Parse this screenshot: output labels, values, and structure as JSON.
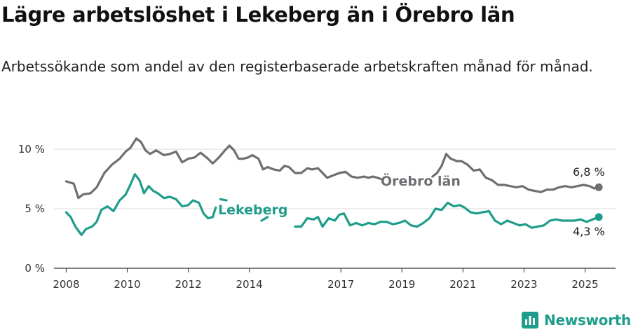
{
  "title": "Lägre arbetslöshet i Lekeberg än i Örebro län",
  "subtitle": "Arbetssökande som andel av den registerbaserade arbetskraften månad för månad.",
  "brand": {
    "name": "Newsworthy",
    "icon": "newsworthy-logo-icon",
    "color": "#1f9d8b"
  },
  "chart_data": {
    "type": "line",
    "ylim": [
      0,
      10.5
    ],
    "xlim": [
      2007.6,
      2026.0
    ],
    "y_ticks": [
      {
        "value": 0,
        "label": "0 %"
      },
      {
        "value": 5,
        "label": "5 %"
      },
      {
        "value": 10,
        "label": "10 %"
      }
    ],
    "x_ticks": [
      {
        "value": 2008,
        "label": "2008"
      },
      {
        "value": 2010,
        "label": "2010"
      },
      {
        "value": 2012,
        "label": "2012"
      },
      {
        "value": 2014,
        "label": "2014"
      },
      {
        "value": 2017,
        "label": "2017"
      },
      {
        "value": 2019,
        "label": "2019"
      },
      {
        "value": 2021,
        "label": "2021"
      },
      {
        "value": 2023,
        "label": "2023"
      },
      {
        "value": 2025,
        "label": "2025"
      }
    ],
    "grid": true,
    "series": [
      {
        "name": "Örebro län",
        "color": "#6f6e73",
        "end_label": "6,8 %",
        "points": [
          [
            2008.0,
            7.3
          ],
          [
            2008.25,
            7.1
          ],
          [
            2008.4,
            5.9
          ],
          [
            2008.55,
            6.2
          ],
          [
            2008.8,
            6.3
          ],
          [
            2009.0,
            6.8
          ],
          [
            2009.25,
            8.0
          ],
          [
            2009.5,
            8.7
          ],
          [
            2009.75,
            9.2
          ],
          [
            2009.95,
            9.8
          ],
          [
            2010.1,
            10.1
          ],
          [
            2010.3,
            10.9
          ],
          [
            2010.45,
            10.6
          ],
          [
            2010.6,
            9.9
          ],
          [
            2010.75,
            9.6
          ],
          [
            2010.95,
            9.9
          ],
          [
            2011.2,
            9.5
          ],
          [
            2011.4,
            9.6
          ],
          [
            2011.6,
            9.8
          ],
          [
            2011.8,
            8.9
          ],
          [
            2012.0,
            9.2
          ],
          [
            2012.2,
            9.3
          ],
          [
            2012.4,
            9.7
          ],
          [
            2012.6,
            9.3
          ],
          [
            2012.8,
            8.8
          ],
          [
            2013.0,
            9.3
          ],
          [
            2013.2,
            9.9
          ],
          [
            2013.35,
            10.3
          ],
          [
            2013.5,
            9.9
          ],
          [
            2013.65,
            9.2
          ],
          [
            2013.8,
            9.2
          ],
          [
            2013.95,
            9.3
          ],
          [
            2014.1,
            9.5
          ],
          [
            2014.3,
            9.2
          ],
          [
            2014.45,
            8.3
          ],
          [
            2014.6,
            8.5
          ],
          [
            2014.8,
            8.3
          ],
          [
            2015.0,
            8.2
          ],
          [
            2015.15,
            8.6
          ],
          [
            2015.3,
            8.5
          ],
          [
            2015.5,
            8.0
          ],
          [
            2015.7,
            8.0
          ],
          [
            2015.9,
            8.4
          ],
          [
            2016.05,
            8.3
          ],
          [
            2016.25,
            8.4
          ],
          [
            2016.4,
            8.0
          ],
          [
            2016.55,
            7.6
          ],
          [
            2016.75,
            7.8
          ],
          [
            2016.95,
            8.0
          ],
          [
            2017.15,
            8.1
          ],
          [
            2017.35,
            7.7
          ],
          [
            2017.55,
            7.6
          ],
          [
            2017.75,
            7.7
          ],
          [
            2017.9,
            7.6
          ],
          [
            2018.05,
            7.7
          ],
          [
            2018.2,
            7.6
          ],
          [
            2018.3,
            7.5
          ]
        ],
        "points_2": [
          [
            2020.0,
            7.7
          ],
          [
            2020.15,
            8.0
          ],
          [
            2020.3,
            8.6
          ],
          [
            2020.45,
            9.6
          ],
          [
            2020.6,
            9.2
          ],
          [
            2020.8,
            9.0
          ],
          [
            2020.95,
            9.0
          ],
          [
            2021.15,
            8.7
          ],
          [
            2021.35,
            8.2
          ],
          [
            2021.55,
            8.3
          ],
          [
            2021.75,
            7.6
          ],
          [
            2021.95,
            7.4
          ],
          [
            2022.15,
            7.0
          ],
          [
            2022.35,
            7.0
          ],
          [
            2022.55,
            6.9
          ],
          [
            2022.75,
            6.8
          ],
          [
            2022.95,
            6.9
          ],
          [
            2023.15,
            6.6
          ],
          [
            2023.35,
            6.5
          ],
          [
            2023.55,
            6.4
          ],
          [
            2023.75,
            6.6
          ],
          [
            2023.95,
            6.6
          ],
          [
            2024.15,
            6.8
          ],
          [
            2024.35,
            6.9
          ],
          [
            2024.55,
            6.8
          ],
          [
            2024.75,
            6.9
          ],
          [
            2024.95,
            7.0
          ],
          [
            2025.15,
            6.9
          ],
          [
            2025.3,
            6.7
          ],
          [
            2025.45,
            6.8
          ]
        ]
      },
      {
        "name": "Lekeberg",
        "color": "#1f9d8b",
        "end_label": "4,3 %",
        "points": [
          [
            2008.0,
            4.7
          ],
          [
            2008.15,
            4.3
          ],
          [
            2008.3,
            3.5
          ],
          [
            2008.5,
            2.8
          ],
          [
            2008.65,
            3.3
          ],
          [
            2008.85,
            3.5
          ],
          [
            2009.0,
            3.9
          ],
          [
            2009.15,
            4.9
          ],
          [
            2009.35,
            5.2
          ],
          [
            2009.55,
            4.8
          ],
          [
            2009.75,
            5.7
          ],
          [
            2009.95,
            6.2
          ],
          [
            2010.1,
            7.0
          ],
          [
            2010.25,
            7.9
          ],
          [
            2010.4,
            7.4
          ],
          [
            2010.55,
            6.3
          ],
          [
            2010.7,
            6.9
          ],
          [
            2010.85,
            6.5
          ],
          [
            2011.0,
            6.3
          ],
          [
            2011.2,
            5.9
          ],
          [
            2011.4,
            6.0
          ],
          [
            2011.6,
            5.8
          ],
          [
            2011.8,
            5.2
          ],
          [
            2012.0,
            5.3
          ],
          [
            2012.15,
            5.7
          ],
          [
            2012.35,
            5.5
          ],
          [
            2012.5,
            4.6
          ],
          [
            2012.65,
            4.2
          ],
          [
            2012.8,
            4.3
          ],
          [
            2012.9,
            5.1
          ]
        ],
        "points_2": [
          [
            2013.05,
            5.8
          ],
          [
            2013.25,
            5.7
          ]
        ],
        "points_3": [
          [
            2014.4,
            4.0
          ],
          [
            2014.6,
            4.3
          ]
        ],
        "points_4": [
          [
            2015.5,
            3.5
          ],
          [
            2015.7,
            3.5
          ],
          [
            2015.9,
            4.2
          ],
          [
            2016.1,
            4.1
          ],
          [
            2016.25,
            4.3
          ],
          [
            2016.4,
            3.5
          ],
          [
            2016.6,
            4.2
          ],
          [
            2016.8,
            4.0
          ],
          [
            2016.95,
            4.5
          ],
          [
            2017.1,
            4.6
          ],
          [
            2017.3,
            3.6
          ],
          [
            2017.5,
            3.8
          ],
          [
            2017.7,
            3.6
          ],
          [
            2017.9,
            3.8
          ],
          [
            2018.1,
            3.7
          ],
          [
            2018.3,
            3.9
          ],
          [
            2018.5,
            3.9
          ],
          [
            2018.7,
            3.7
          ],
          [
            2018.9,
            3.8
          ],
          [
            2019.1,
            4.0
          ],
          [
            2019.3,
            3.6
          ],
          [
            2019.5,
            3.5
          ],
          [
            2019.7,
            3.8
          ],
          [
            2019.9,
            4.2
          ],
          [
            2020.1,
            5.0
          ],
          [
            2020.3,
            4.9
          ],
          [
            2020.5,
            5.5
          ],
          [
            2020.7,
            5.2
          ],
          [
            2020.9,
            5.3
          ],
          [
            2021.05,
            5.1
          ],
          [
            2021.25,
            4.7
          ],
          [
            2021.45,
            4.6
          ],
          [
            2021.65,
            4.7
          ],
          [
            2021.85,
            4.8
          ],
          [
            2022.05,
            4.0
          ],
          [
            2022.25,
            3.7
          ],
          [
            2022.45,
            4.0
          ],
          [
            2022.65,
            3.8
          ],
          [
            2022.85,
            3.6
          ],
          [
            2023.05,
            3.7
          ],
          [
            2023.25,
            3.4
          ],
          [
            2023.45,
            3.5
          ],
          [
            2023.65,
            3.6
          ],
          [
            2023.85,
            4.0
          ],
          [
            2024.05,
            4.1
          ],
          [
            2024.25,
            4.0
          ],
          [
            2024.45,
            4.0
          ],
          [
            2024.65,
            4.0
          ],
          [
            2024.85,
            4.1
          ],
          [
            2025.05,
            3.9
          ],
          [
            2025.25,
            4.1
          ],
          [
            2025.45,
            4.3
          ]
        ]
      }
    ]
  }
}
